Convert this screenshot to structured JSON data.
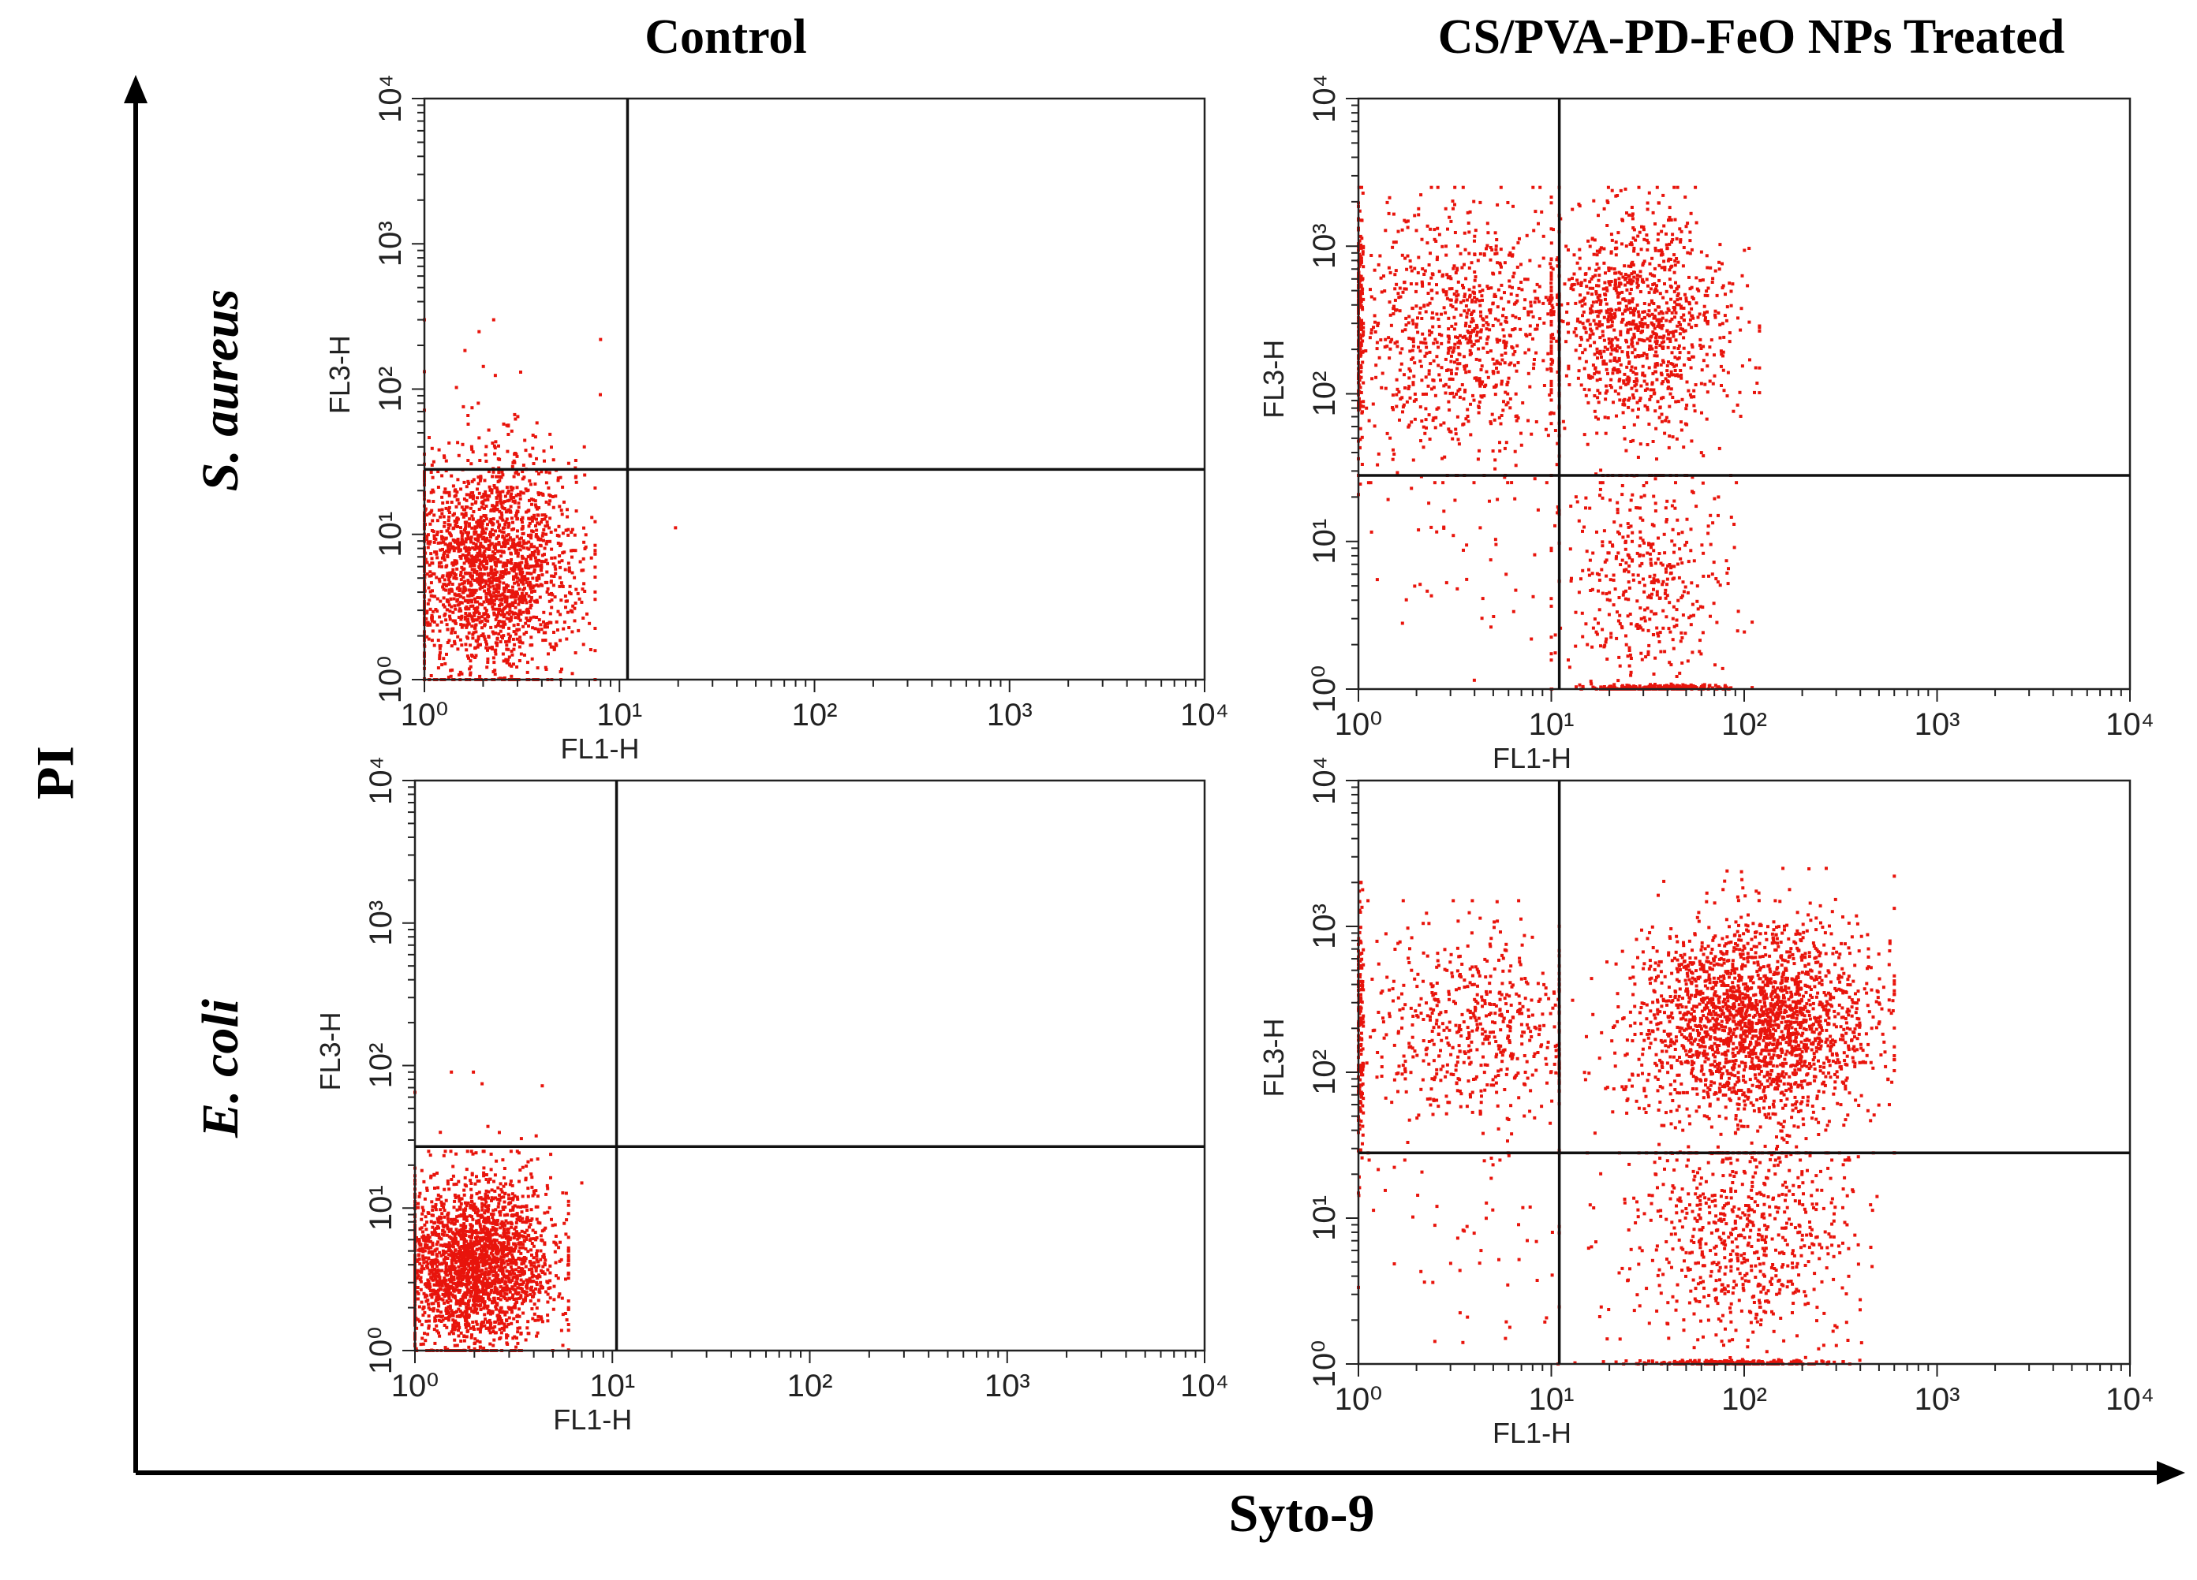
{
  "figure": {
    "column_titles": [
      "Control",
      "CS/PVA-PD-FeO  NPs Treated"
    ],
    "row_labels": [
      "S. aureus",
      "E. coli"
    ],
    "y_axis_title": "PI",
    "x_axis_title": "Syto-9"
  },
  "colors": {
    "dots": "#e8140c",
    "frame": "#222222",
    "axis": "#000000"
  },
  "chart_data": [
    {
      "type": "scatter",
      "id": "s-aureus-control",
      "title": "Control",
      "row": "S. aureus",
      "xlabel": "FL1-H",
      "ylabel": "FL3-H",
      "xscale": "log",
      "yscale": "log",
      "xlim": [
        1,
        10000
      ],
      "ylim": [
        1,
        10000
      ],
      "x_ticks": [
        1,
        10,
        100,
        1000,
        10000
      ],
      "y_ticks": [
        1,
        10,
        100,
        1000,
        10000
      ],
      "gate": {
        "x": 11,
        "y": 28
      },
      "populations": [
        {
          "name": "main",
          "n": 2000,
          "x_range": [
            1,
            7.5
          ],
          "y_range": [
            1,
            80
          ],
          "cx": 2.2,
          "cy": 6,
          "sx": 0.22,
          "sy": 0.38
        },
        {
          "name": "sparse",
          "n": 25,
          "x_range": [
            1,
            8
          ],
          "y_range": [
            25,
            300
          ],
          "cx": 2.5,
          "cy": 60,
          "sx": 0.3,
          "sy": 0.4
        },
        {
          "name": "outlier",
          "n": 1,
          "x_range": [
            18,
            22
          ],
          "y_range": [
            10,
            12
          ],
          "cx": 20,
          "cy": 11,
          "sx": 0.02,
          "sy": 0.02
        }
      ]
    },
    {
      "type": "scatter",
      "id": "s-aureus-treated",
      "title": "CS/PVA-PD-FeO  NPs Treated",
      "row": "S. aureus",
      "xlabel": "FL1-H",
      "ylabel": "FL3-H",
      "xscale": "log",
      "yscale": "log",
      "xlim": [
        1,
        10000
      ],
      "ylim": [
        1,
        10000
      ],
      "x_ticks": [
        1,
        10,
        100,
        1000,
        10000
      ],
      "y_ticks": [
        1,
        10,
        100,
        1000,
        10000
      ],
      "gate": {
        "x": 11,
        "y": 28
      },
      "populations": [
        {
          "name": "upper-left",
          "n": 900,
          "x_range": [
            1,
            11
          ],
          "y_range": [
            25,
            2500
          ],
          "cx": 3.5,
          "cy": 250,
          "sx": 0.3,
          "sy": 0.42
        },
        {
          "name": "upper-right",
          "n": 1100,
          "x_range": [
            10,
            120
          ],
          "y_range": [
            25,
            2500
          ],
          "cx": 28,
          "cy": 300,
          "sx": 0.25,
          "sy": 0.4
        },
        {
          "name": "lower-right",
          "n": 450,
          "x_range": [
            10,
            110
          ],
          "y_range": [
            1,
            28
          ],
          "cx": 30,
          "cy": 5,
          "sx": 0.22,
          "sy": 0.45
        },
        {
          "name": "lower-left",
          "n": 60,
          "x_range": [
            1,
            11
          ],
          "y_range": [
            1,
            28
          ],
          "cx": 4,
          "cy": 8,
          "sx": 0.3,
          "sy": 0.4
        },
        {
          "name": "bottom-edge",
          "n": 200,
          "x_range": [
            10,
            110
          ],
          "y_range": [
            1,
            1.08
          ],
          "cx": 35,
          "cy": 1.02,
          "sx": 0.2,
          "sy": 0.01
        },
        {
          "name": "left-edge",
          "n": 180,
          "x_range": [
            1,
            1.06
          ],
          "y_range": [
            20,
            2500
          ],
          "cx": 1.02,
          "cy": 300,
          "sx": 0.01,
          "sy": 0.4
        }
      ]
    },
    {
      "type": "scatter",
      "id": "e-coli-control",
      "title": "Control",
      "row": "E. coli",
      "xlabel": "FL1-H",
      "ylabel": "FL3-H",
      "xscale": "log",
      "yscale": "log",
      "xlim": [
        1,
        10000
      ],
      "ylim": [
        1,
        10000
      ],
      "x_ticks": [
        1,
        10,
        100,
        1000,
        10000
      ],
      "y_ticks": [
        1,
        10,
        100,
        1000,
        10000
      ],
      "gate": {
        "x": 10.5,
        "y": 27
      },
      "populations": [
        {
          "name": "main",
          "n": 2400,
          "x_range": [
            1,
            6
          ],
          "y_range": [
            1,
            25
          ],
          "cx": 2,
          "cy": 4,
          "sx": 0.2,
          "sy": 0.3
        },
        {
          "name": "sparse",
          "n": 15,
          "x_range": [
            1,
            7
          ],
          "y_range": [
            15,
            90
          ],
          "cx": 2,
          "cy": 30,
          "sx": 0.25,
          "sy": 0.3
        }
      ]
    },
    {
      "type": "scatter",
      "id": "e-coli-treated",
      "title": "CS/PVA-PD-FeO  NPs Treated",
      "row": "E. coli",
      "xlabel": "FL1-H",
      "ylabel": "FL3-H",
      "xscale": "log",
      "yscale": "log",
      "xlim": [
        1,
        10000
      ],
      "ylim": [
        1,
        10000
      ],
      "x_ticks": [
        1,
        10,
        100,
        1000,
        10000
      ],
      "y_ticks": [
        1,
        10,
        100,
        1000,
        10000
      ],
      "gate": {
        "x": 11,
        "y": 28
      },
      "populations": [
        {
          "name": "upper-left",
          "n": 600,
          "x_range": [
            1,
            11
          ],
          "y_range": [
            25,
            1500
          ],
          "cx": 4,
          "cy": 200,
          "sx": 0.3,
          "sy": 0.35
        },
        {
          "name": "upper-right",
          "n": 2300,
          "x_range": [
            10,
            600
          ],
          "y_range": [
            25,
            2500
          ],
          "cx": 110,
          "cy": 220,
          "sx": 0.32,
          "sy": 0.35
        },
        {
          "name": "lower-right",
          "n": 750,
          "x_range": [
            10,
            600
          ],
          "y_range": [
            1,
            28
          ],
          "cx": 100,
          "cy": 8,
          "sx": 0.3,
          "sy": 0.4
        },
        {
          "name": "lower-left",
          "n": 60,
          "x_range": [
            1,
            11
          ],
          "y_range": [
            1,
            28
          ],
          "cx": 4,
          "cy": 8,
          "sx": 0.3,
          "sy": 0.4
        },
        {
          "name": "bottom-edge",
          "n": 220,
          "x_range": [
            10,
            400
          ],
          "y_range": [
            1,
            1.08
          ],
          "cx": 90,
          "cy": 1.02,
          "sx": 0.25,
          "sy": 0.01
        },
        {
          "name": "left-edge",
          "n": 150,
          "x_range": [
            1,
            1.06
          ],
          "y_range": [
            8,
            2000
          ],
          "cx": 1.02,
          "cy": 200,
          "sx": 0.01,
          "sy": 0.45
        }
      ]
    }
  ]
}
